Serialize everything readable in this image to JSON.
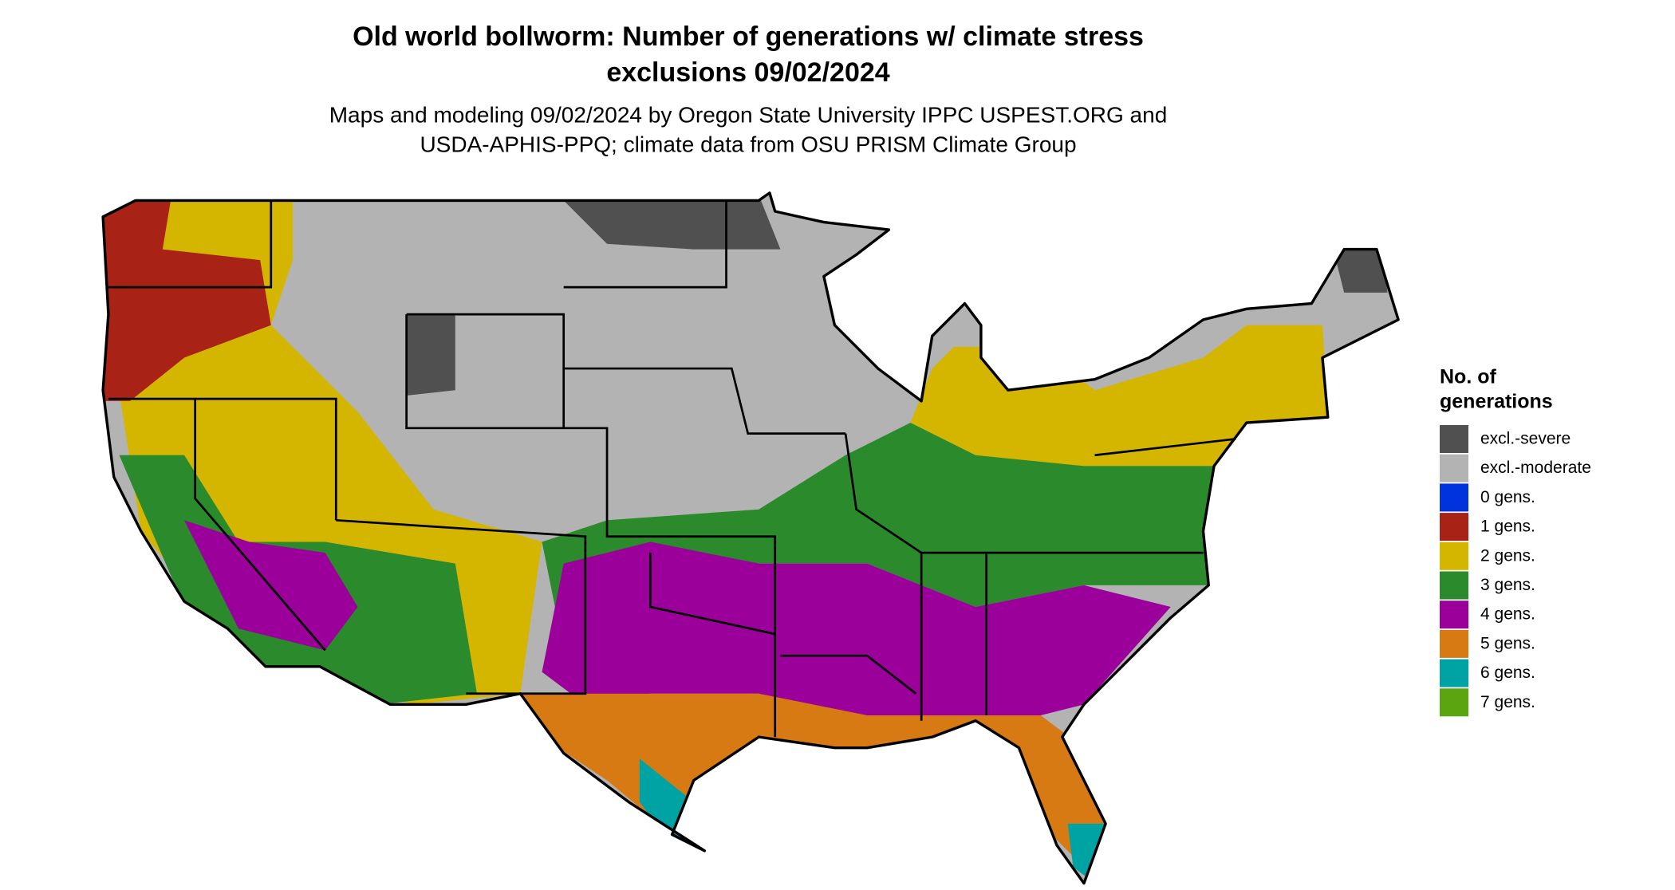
{
  "title_lines": [
    "Old world bollworm: Number of generations w/ climate stress",
    "exclusions 09/02/2024"
  ],
  "subtitle_lines": [
    "Maps and modeling 09/02/2024 by Oregon State University IPPC USPEST.ORG and",
    "USDA-APHIS-PPQ; climate data from OSU PRISM Climate Group"
  ],
  "legend": {
    "title_lines": [
      "No. of",
      "generations"
    ],
    "items": [
      {
        "label": "excl.-severe",
        "color": "#505050"
      },
      {
        "label": "excl.-moderate",
        "color": "#b3b3b3"
      },
      {
        "label": "0 gens.",
        "color": "#0033dd"
      },
      {
        "label": "1 gens.",
        "color": "#a82215"
      },
      {
        "label": "2 gens.",
        "color": "#d4b600"
      },
      {
        "label": "3 gens.",
        "color": "#2b8a2b"
      },
      {
        "label": "4 gens.",
        "color": "#9b009b"
      },
      {
        "label": "5 gens.",
        "color": "#d77a13"
      },
      {
        "label": "6 gens.",
        "color": "#00a3a3"
      },
      {
        "label": "7 gens.",
        "color": "#5aa510"
      }
    ]
  }
}
